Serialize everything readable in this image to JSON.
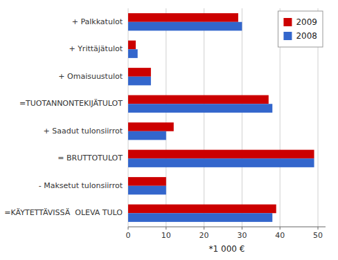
{
  "chart_data": {
    "type": "bar",
    "orientation": "horizontal",
    "categories": [
      "=KÄYTETTÄVISSÄ  OLEVA TULO",
      "- Maksetut tulonsiirrot",
      "= BRUTTOTULOT",
      "+ Saadut tulonsiirrot",
      "=TUOTANNONTEKIJÄTULOT",
      "+ Omaisuustulot",
      "+ Yrittäjätulot",
      "+ Palkkatulot"
    ],
    "series": [
      {
        "name": "2009",
        "color": "#cc0000",
        "values": [
          39,
          10,
          49,
          12,
          37,
          6,
          2,
          29
        ]
      },
      {
        "name": "2008",
        "color": "#3366cc",
        "values": [
          38,
          10,
          49,
          10,
          38,
          6,
          2.5,
          30
        ]
      }
    ],
    "xlabel": "*1 000 €",
    "xlim": [
      0,
      52
    ],
    "xticks": [
      0,
      10,
      20,
      30,
      40,
      50
    ],
    "grid": true,
    "legend": "upper right"
  }
}
